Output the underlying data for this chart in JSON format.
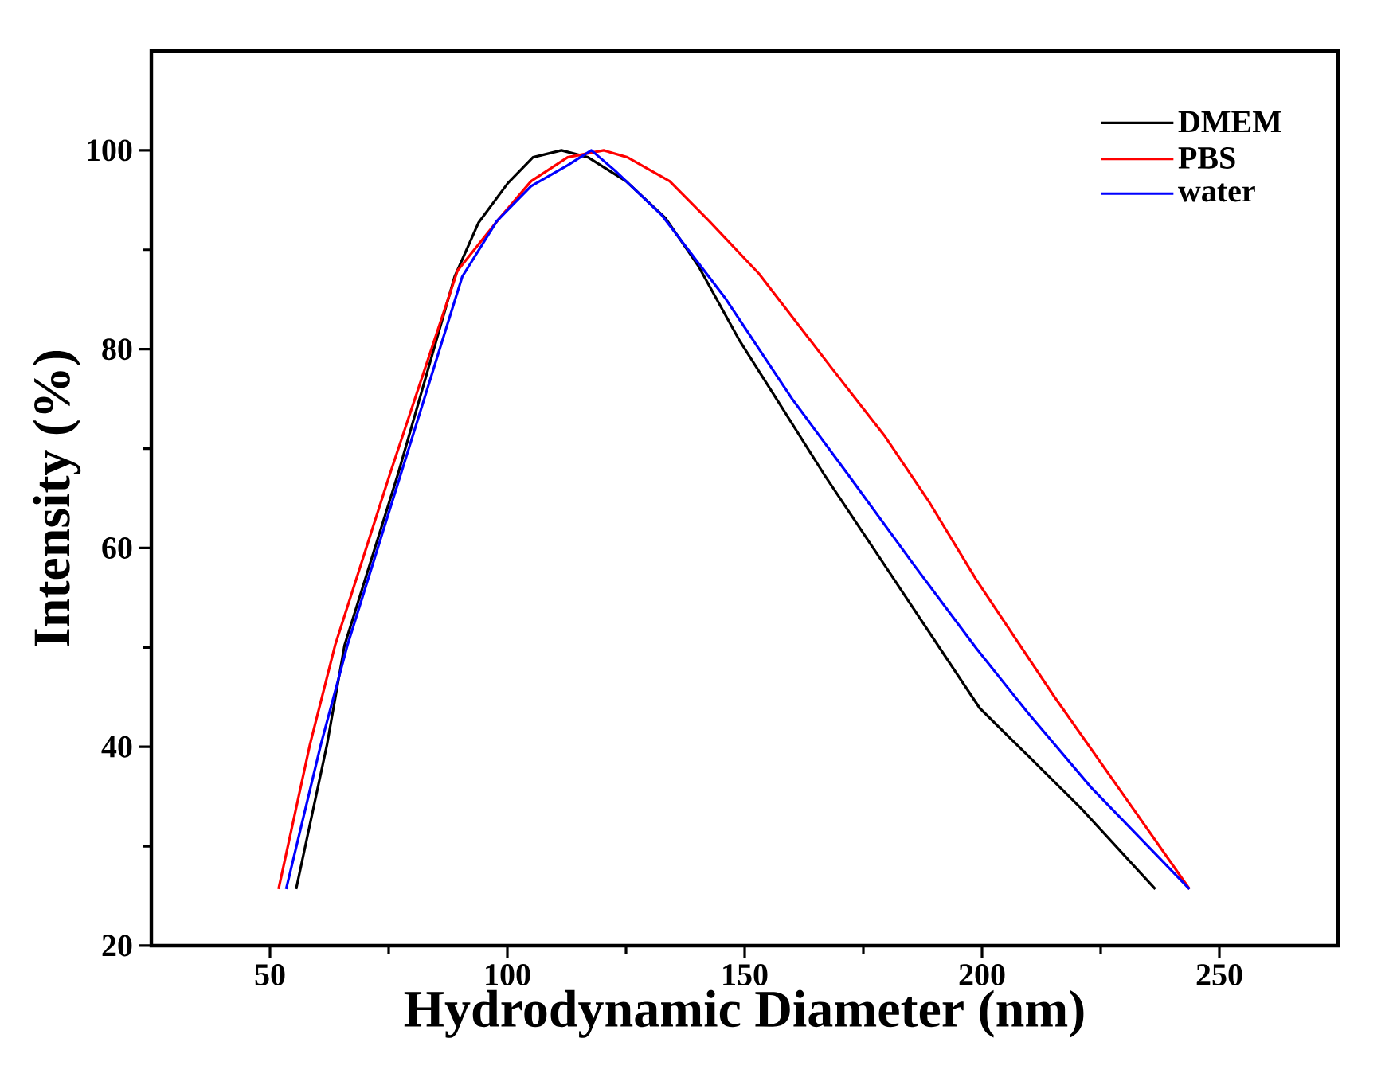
{
  "chart_data": {
    "type": "line",
    "xlabel": "Hydrodynamic Diameter (nm)",
    "ylabel": "Intensity (%)",
    "xlim": [
      25,
      275
    ],
    "xticks": [
      50,
      100,
      150,
      200,
      250
    ],
    "ylim": [
      20,
      110
    ],
    "yticks": [
      20,
      40,
      60,
      80,
      100
    ],
    "legend": "top right",
    "grid": false,
    "marker": "none",
    "line_style": "solid",
    "series": [
      {
        "name": "DMEM",
        "color": "#000000",
        "x": [
          55.5,
          62,
          65.7,
          77,
          88.9,
          93.9,
          100.1,
          105.4,
          111.4,
          117,
          125,
          133.3,
          140.2,
          149,
          156.7,
          166.6,
          180,
          199.5,
          209.7,
          220.9,
          236.5
        ],
        "values": [
          25.7,
          40.2,
          50.2,
          67.5,
          87.3,
          92.7,
          96.7,
          99.3,
          100,
          99.3,
          96.9,
          93.2,
          88.4,
          80.8,
          75,
          67.5,
          57.9,
          43.9,
          39.1,
          33.8,
          25.7
        ]
      },
      {
        "name": "PBS",
        "color": "#ff0000",
        "x": [
          51.8,
          58.4,
          63.7,
          75.3,
          89.5,
          98.4,
          105,
          112.7,
          120.3,
          125.3,
          134.2,
          142.5,
          153,
          168,
          179.6,
          188.9,
          198.8,
          215.3,
          231.8,
          243.7
        ],
        "values": [
          25.7,
          40.2,
          50.2,
          67.5,
          87.9,
          93.2,
          96.9,
          99.3,
          100,
          99.3,
          96.9,
          92.9,
          87.6,
          78.3,
          71.2,
          64.6,
          56.8,
          45,
          33.8,
          25.7
        ]
      },
      {
        "name": "water",
        "color": "#0000ff",
        "x": [
          53.4,
          60.7,
          66.3,
          77.6,
          90.5,
          97.8,
          105,
          112.7,
          117.7,
          122.6,
          132.5,
          145.8,
          160,
          171.6,
          185.5,
          198.8,
          209.7,
          223,
          243.7
        ],
        "values": [
          25.7,
          40.2,
          50.2,
          67.5,
          87.3,
          92.9,
          96.4,
          98.5,
          100,
          98,
          93.5,
          85.2,
          75,
          67.5,
          58.4,
          49.9,
          43.4,
          35.9,
          25.7
        ]
      }
    ]
  }
}
